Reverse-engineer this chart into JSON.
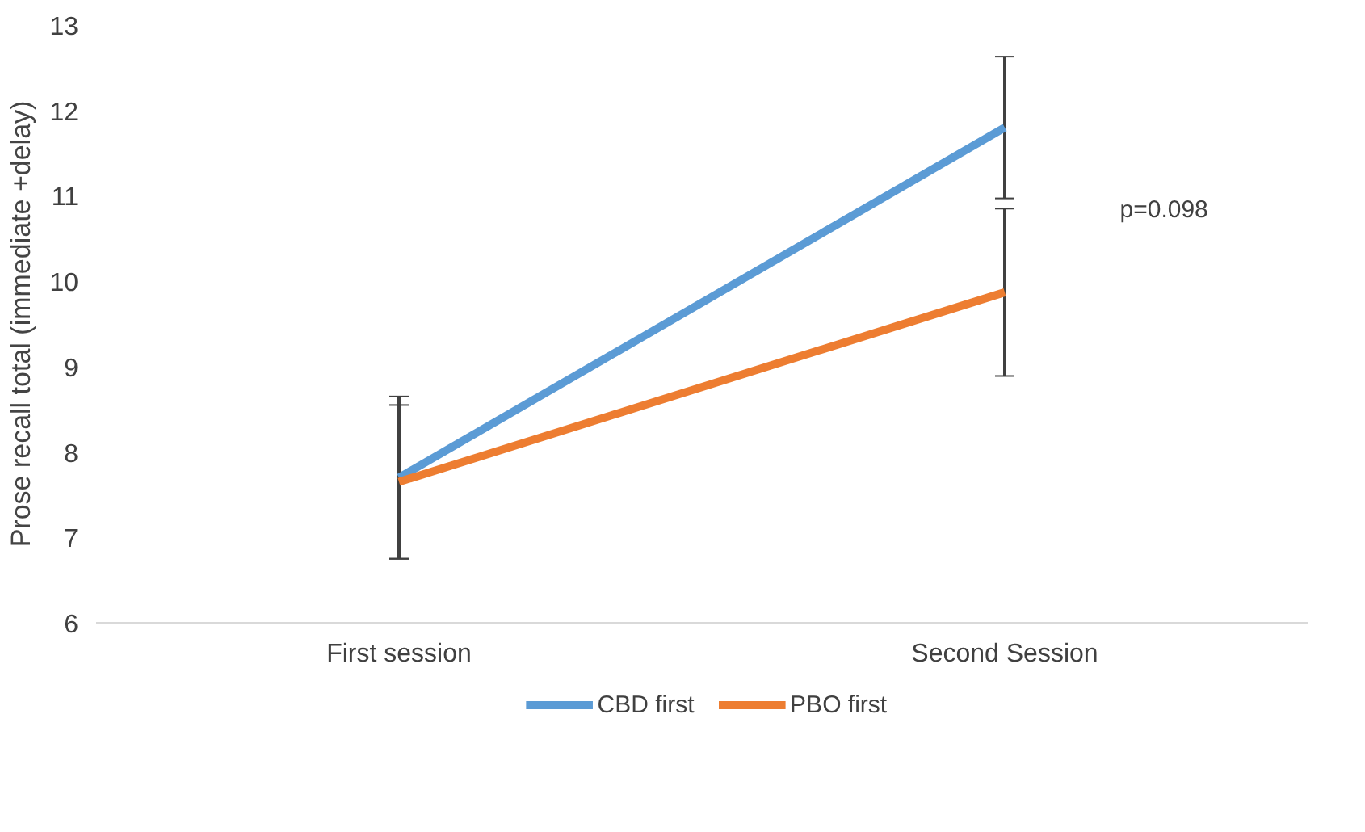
{
  "chart_data": {
    "type": "line",
    "ylabel": "Prose recall total (immediate +delay)",
    "categories": [
      "First session",
      "Second Session"
    ],
    "series": [
      {
        "name": "CBD first",
        "color": "#5b9bd5",
        "values": [
          7.7,
          11.8
        ],
        "errors": [
          0.95,
          0.83
        ]
      },
      {
        "name": "PBO first",
        "color": "#ed7d31",
        "values": [
          7.65,
          9.87
        ],
        "errors": [
          0.9,
          0.98
        ]
      }
    ],
    "ylim": [
      6,
      13
    ],
    "yticks": [
      6,
      7,
      8,
      9,
      10,
      11,
      12,
      13
    ],
    "grid": false,
    "legend": "bottom",
    "marker": "none",
    "line_style": "solid",
    "annotations": [
      "p=0.098"
    ]
  }
}
